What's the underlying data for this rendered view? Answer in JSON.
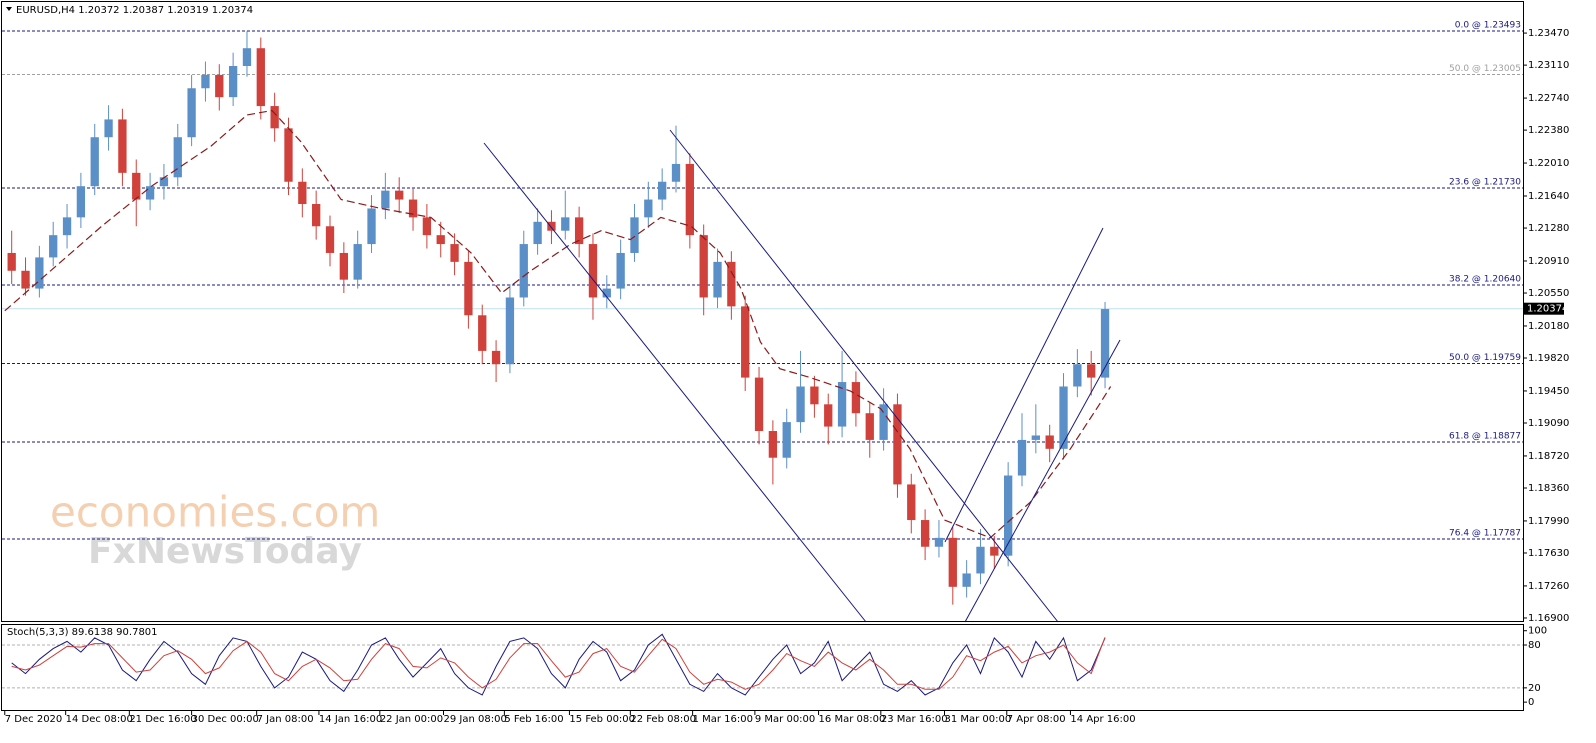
{
  "chart_data": [
    {
      "type": "candlestick",
      "title": "EURUSD,H4  1.20372 1.20387 1.20319 1.20374",
      "up_color": "#5b8fc7",
      "down_color": "#d0413b",
      "xlim": [
        -0.7,
        109.2
      ],
      "ylim": [
        1.16866,
        1.23819
      ],
      "yticks": [
        {
          "value": 1.2347,
          "label": "1.23470"
        },
        {
          "value": 1.2311,
          "label": "1.23110"
        },
        {
          "value": 1.2274,
          "label": "1.22740"
        },
        {
          "value": 1.2238,
          "label": "1.22380"
        },
        {
          "value": 1.2201,
          "label": "1.22010"
        },
        {
          "value": 1.2164,
          "label": "1.21640"
        },
        {
          "value": 1.2128,
          "label": "1.21280"
        },
        {
          "value": 1.2091,
          "label": "1.20910"
        },
        {
          "value": 1.2055,
          "label": "1.20550"
        },
        {
          "value": 1.2018,
          "label": "1.20180"
        },
        {
          "value": 1.1982,
          "label": "1.19820"
        },
        {
          "value": 1.1945,
          "label": "1.19450"
        },
        {
          "value": 1.1909,
          "label": "1.19090"
        },
        {
          "value": 1.1872,
          "label": "1.18720"
        },
        {
          "value": 1.1836,
          "label": "1.18360"
        },
        {
          "value": 1.1799,
          "label": "1.17990"
        },
        {
          "value": 1.1763,
          "label": "1.17630"
        },
        {
          "value": 1.1726,
          "label": "1.17260"
        },
        {
          "value": 1.169,
          "label": "1.16900"
        }
      ],
      "xticks": [
        {
          "value": -0.5,
          "label": "7 Dec 2020"
        },
        {
          "value": 3.9,
          "label": "14 Dec 08:00"
        },
        {
          "value": 8.5,
          "label": "21 Dec 16:00"
        },
        {
          "value": 13,
          "label": "30 Dec 00:00"
        },
        {
          "value": 17.7,
          "label": "7 Jan 08:00"
        },
        {
          "value": 22.2,
          "label": "14 Jan 16:00"
        },
        {
          "value": 26.6,
          "label": "22 Jan 00:00"
        },
        {
          "value": 31.2,
          "label": "29 Jan 08:00"
        },
        {
          "value": 35.6,
          "label": "5 Feb 16:00"
        },
        {
          "value": 40.3,
          "label": "15 Feb 00:00"
        },
        {
          "value": 44.7,
          "label": "22 Feb 08:00"
        },
        {
          "value": 49.2,
          "label": "1 Mar 16:00"
        },
        {
          "value": 53.7,
          "label": "9 Mar 00:00"
        },
        {
          "value": 58.3,
          "label": "16 Mar 08:00"
        },
        {
          "value": 62.8,
          "label": "23 Mar 16:00"
        },
        {
          "value": 67.4,
          "label": "31 Mar 00:00"
        },
        {
          "value": 71.9,
          "label": "7 Apr 08:00"
        },
        {
          "value": 76.5,
          "label": "14 Apr 16:00"
        }
      ],
      "last_price": 1.20374,
      "fib_levels": [
        {
          "label": "0.0 @ 1.23493",
          "value": 1.23493,
          "color": "#1a1a80"
        },
        {
          "label": "50.0 @ 1.23005",
          "value": 1.23005,
          "color": "#a0a0a0"
        },
        {
          "label": "23.6 @ 1.21730",
          "value": 1.2173,
          "color": "#1a1a80"
        },
        {
          "label": "38.2 @ 1.20640",
          "value": 1.2064,
          "color": "#1a1a80"
        },
        {
          "label": "50.0 @ 1.19759",
          "value": 1.19759,
          "color": "#1a1a80"
        },
        {
          "label": "61.8 @ 1.18877",
          "value": 1.18877,
          "color": "#1a1a80"
        },
        {
          "label": "76.4 @ 1.17787",
          "value": 1.17787,
          "color": "#1a1a80"
        }
      ],
      "ohlc": [
        [
          1.21,
          1.2125,
          1.2065,
          1.208
        ],
        [
          1.208,
          1.2095,
          1.2052,
          1.206
        ],
        [
          1.206,
          1.2108,
          1.205,
          1.2095
        ],
        [
          1.2095,
          1.2135,
          1.2085,
          1.212
        ],
        [
          1.212,
          1.2155,
          1.2105,
          1.214
        ],
        [
          1.214,
          1.219,
          1.2128,
          1.2175
        ],
        [
          1.2175,
          1.2245,
          1.2165,
          1.223
        ],
        [
          1.223,
          1.2266,
          1.2215,
          1.225
        ],
        [
          1.225,
          1.2262,
          1.2175,
          1.219
        ],
        [
          1.219,
          1.2205,
          1.213,
          1.216
        ],
        [
          1.216,
          1.219,
          1.2148,
          1.2175
        ],
        [
          1.2175,
          1.22,
          1.216,
          1.2185
        ],
        [
          1.2185,
          1.2245,
          1.2175,
          1.223
        ],
        [
          1.223,
          1.23,
          1.222,
          1.2285
        ],
        [
          1.2285,
          1.2315,
          1.227,
          1.23
        ],
        [
          1.23,
          1.2312,
          1.226,
          1.2275
        ],
        [
          1.2275,
          1.2325,
          1.2265,
          1.231
        ],
        [
          1.231,
          1.2349,
          1.2298,
          1.233
        ],
        [
          1.233,
          1.2342,
          1.225,
          1.2265
        ],
        [
          1.2265,
          1.228,
          1.2225,
          1.224
        ],
        [
          1.224,
          1.2252,
          1.2165,
          1.218
        ],
        [
          1.218,
          1.2195,
          1.214,
          1.2155
        ],
        [
          1.2155,
          1.217,
          1.2115,
          1.213
        ],
        [
          1.213,
          1.2142,
          1.2085,
          1.21
        ],
        [
          1.21,
          1.2112,
          1.2055,
          1.207
        ],
        [
          1.207,
          1.2125,
          1.206,
          1.211
        ],
        [
          1.211,
          1.2165,
          1.21,
          1.215
        ],
        [
          1.215,
          1.219,
          1.2138,
          1.217
        ],
        [
          1.217,
          1.2185,
          1.2145,
          1.216
        ],
        [
          1.216,
          1.2172,
          1.2125,
          1.214
        ],
        [
          1.214,
          1.2155,
          1.2105,
          1.212
        ],
        [
          1.212,
          1.2135,
          1.2095,
          1.211
        ],
        [
          1.211,
          1.2122,
          1.2075,
          1.209
        ],
        [
          1.209,
          1.2102,
          1.2015,
          1.203
        ],
        [
          1.203,
          1.2042,
          1.1975,
          1.199
        ],
        [
          1.199,
          1.2002,
          1.1955,
          1.1975
        ],
        [
          1.1975,
          1.2065,
          1.1965,
          1.205
        ],
        [
          1.205,
          1.2125,
          1.204,
          1.211
        ],
        [
          1.211,
          1.215,
          1.2098,
          1.2135
        ],
        [
          1.2135,
          1.2148,
          1.211,
          1.2125
        ],
        [
          1.2125,
          1.217,
          1.2115,
          1.214
        ],
        [
          1.214,
          1.2152,
          1.2095,
          1.211
        ],
        [
          1.211,
          1.2122,
          1.2025,
          1.205
        ],
        [
          1.205,
          1.2075,
          1.2038,
          1.206
        ],
        [
          1.206,
          1.2115,
          1.2048,
          1.21
        ],
        [
          1.21,
          1.2155,
          1.209,
          1.214
        ],
        [
          1.214,
          1.218,
          1.2128,
          1.216
        ],
        [
          1.216,
          1.2195,
          1.2148,
          1.218
        ],
        [
          1.218,
          1.2243,
          1.2168,
          1.22
        ],
        [
          1.22,
          1.2212,
          1.2105,
          1.212
        ],
        [
          1.212,
          1.2132,
          1.203,
          1.205
        ],
        [
          1.205,
          1.2105,
          1.2038,
          1.209
        ],
        [
          1.209,
          1.2102,
          1.2025,
          1.204
        ],
        [
          1.204,
          1.2052,
          1.1945,
          1.196
        ],
        [
          1.196,
          1.1972,
          1.1885,
          1.19
        ],
        [
          1.19,
          1.1912,
          1.184,
          1.187
        ],
        [
          1.187,
          1.1925,
          1.1858,
          1.191
        ],
        [
          1.191,
          1.199,
          1.1898,
          1.195
        ],
        [
          1.195,
          1.1962,
          1.1915,
          1.193
        ],
        [
          1.193,
          1.1942,
          1.1885,
          1.1905
        ],
        [
          1.1905,
          1.199,
          1.1893,
          1.1955
        ],
        [
          1.1955,
          1.1967,
          1.1905,
          1.192
        ],
        [
          1.192,
          1.1932,
          1.187,
          1.189
        ],
        [
          1.189,
          1.1948,
          1.1878,
          1.193
        ],
        [
          1.193,
          1.1942,
          1.1825,
          1.184
        ],
        [
          1.184,
          1.1852,
          1.1785,
          1.18
        ],
        [
          1.18,
          1.1812,
          1.1755,
          1.177
        ],
        [
          1.177,
          1.18,
          1.1758,
          1.178
        ],
        [
          1.178,
          1.1792,
          1.1705,
          1.1725
        ],
        [
          1.1725,
          1.1755,
          1.1713,
          1.174
        ],
        [
          1.174,
          1.179,
          1.1728,
          1.177
        ],
        [
          1.177,
          1.1782,
          1.1745,
          1.176
        ],
        [
          1.176,
          1.1865,
          1.1748,
          1.185
        ],
        [
          1.185,
          1.192,
          1.1838,
          1.189
        ],
        [
          1.189,
          1.193,
          1.1875,
          1.1895
        ],
        [
          1.1895,
          1.1907,
          1.1865,
          1.188
        ],
        [
          1.188,
          1.1965,
          1.1868,
          1.195
        ],
        [
          1.195,
          1.1992,
          1.1938,
          1.1975
        ],
        [
          1.1975,
          1.199,
          1.194,
          1.196
        ],
        [
          1.196,
          1.2045,
          1.1948,
          1.2037
        ]
      ],
      "moving_average": {
        "color": "#8b1a1a",
        "x": [
          -0.5,
          6.5,
          10.1,
          14.4,
          17,
          18.8,
          20.9,
          23.8,
          26.7,
          30.3,
          33.2,
          35.4,
          37.5,
          40.4,
          42.6,
          44.7,
          46.9,
          49.1,
          51.2,
          52.7,
          54.1,
          55.5,
          57.7,
          60.6,
          62.8,
          64.9,
          67.4,
          70.7,
          73.6,
          76.5,
          78.6,
          79.4
        ],
        "values": [
          1.2035,
          1.213,
          1.2175,
          1.222,
          1.2255,
          1.226,
          1.2225,
          1.216,
          1.215,
          1.214,
          1.21,
          1.2055,
          1.208,
          1.211,
          1.2125,
          1.2115,
          1.214,
          1.213,
          1.21,
          1.206,
          1.2,
          1.197,
          1.196,
          1.1945,
          1.1925,
          1.188,
          1.18,
          1.178,
          1.182,
          1.188,
          1.193,
          1.195
        ]
      },
      "watermark": [
        "economies.com",
        "FxNewsToday"
      ]
    },
    {
      "type": "line",
      "title": "Stoch(5,3,3) 89.6138 90.7801",
      "ylim": [
        -11,
        108
      ],
      "yticks": [
        100,
        80,
        20,
        0
      ],
      "levels": [
        80,
        20
      ],
      "series": [
        {
          "color": "#1a1a80",
          "values": [
            55,
            40,
            60,
            75,
            85,
            70,
            90,
            80,
            45,
            30,
            60,
            85,
            70,
            40,
            25,
            65,
            90,
            85,
            50,
            20,
            35,
            70,
            60,
            30,
            15,
            45,
            80,
            90,
            60,
            35,
            55,
            75,
            40,
            20,
            10,
            50,
            85,
            90,
            75,
            40,
            20,
            60,
            85,
            70,
            30,
            45,
            80,
            95,
            60,
            25,
            15,
            40,
            20,
            10,
            35,
            60,
            80,
            40,
            55,
            85,
            30,
            50,
            70,
            25,
            15,
            30,
            10,
            20,
            55,
            80,
            40,
            90,
            70,
            35,
            85,
            60,
            90,
            30,
            45,
            89.6138
          ]
        },
        {
          "color": "#d0413b",
          "values": [
            50,
            45,
            52,
            65,
            78,
            77,
            82,
            82,
            62,
            42,
            45,
            65,
            72,
            60,
            40,
            48,
            72,
            85,
            70,
            40,
            30,
            50,
            60,
            48,
            30,
            32,
            60,
            82,
            75,
            50,
            48,
            62,
            55,
            35,
            20,
            32,
            62,
            82,
            82,
            58,
            35,
            42,
            68,
            75,
            50,
            42,
            65,
            88,
            75,
            42,
            25,
            32,
            28,
            18,
            25,
            45,
            68,
            58,
            50,
            70,
            55,
            45,
            60,
            45,
            25,
            25,
            18,
            18,
            35,
            65,
            58,
            70,
            78,
            55,
            65,
            70,
            80,
            55,
            40,
            90.7801
          ]
        }
      ]
    }
  ]
}
